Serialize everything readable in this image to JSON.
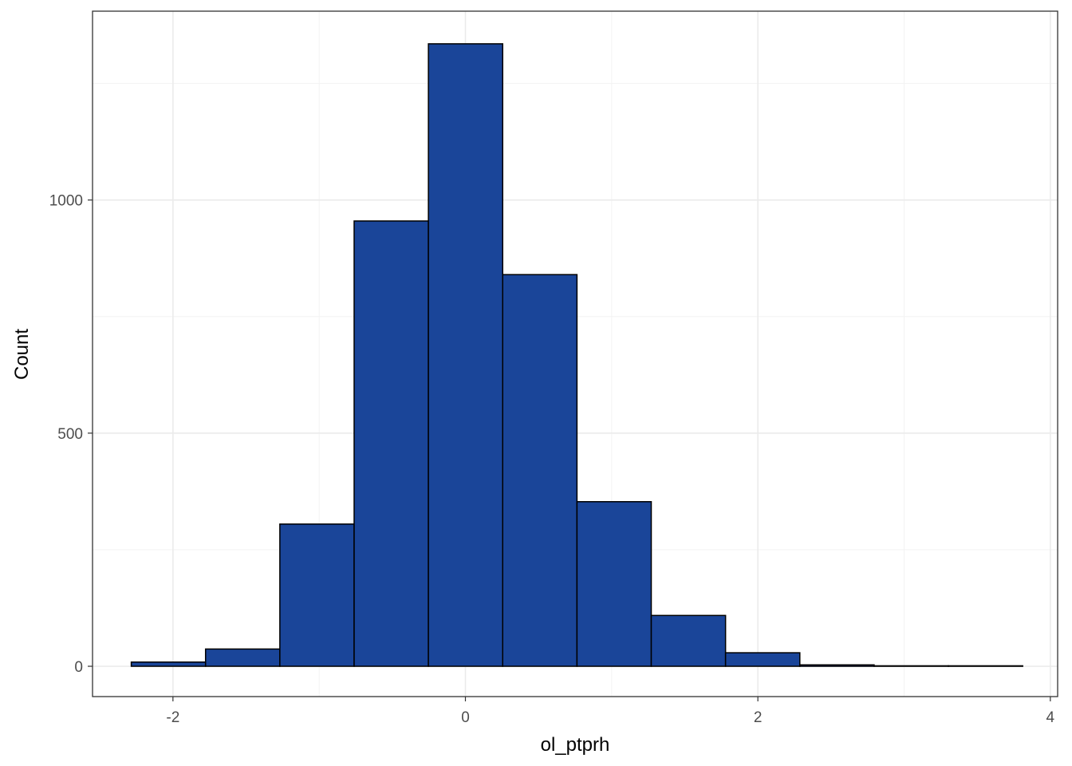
{
  "chart_data": {
    "type": "bar",
    "subtype": "histogram",
    "xlabel": "ol_ptprh",
    "ylabel": "Count",
    "xlim": [
      -2.55,
      4.05
    ],
    "ylim": [
      -65,
      1405
    ],
    "x_ticks": [
      -2,
      0,
      2,
      4
    ],
    "x_tick_labels": [
      "-2",
      "0",
      "2",
      "4"
    ],
    "x_minor": [
      -1,
      1,
      3
    ],
    "y_ticks": [
      0,
      500,
      1000
    ],
    "y_tick_labels": [
      "0",
      "500",
      "1000"
    ],
    "y_minor": [
      250,
      750,
      1250
    ],
    "bin_width": 0.508,
    "bins": [
      {
        "x0": -2.285,
        "x1": -1.777,
        "count": 9
      },
      {
        "x0": -1.777,
        "x1": -1.269,
        "count": 37
      },
      {
        "x0": -1.269,
        "x1": -0.761,
        "count": 305
      },
      {
        "x0": -0.761,
        "x1": -0.253,
        "count": 955
      },
      {
        "x0": -0.253,
        "x1": 0.255,
        "count": 1335
      },
      {
        "x0": 0.255,
        "x1": 0.763,
        "count": 840
      },
      {
        "x0": 0.763,
        "x1": 1.271,
        "count": 353
      },
      {
        "x0": 1.271,
        "x1": 1.779,
        "count": 109
      },
      {
        "x0": 1.779,
        "x1": 2.287,
        "count": 29
      },
      {
        "x0": 2.287,
        "x1": 2.795,
        "count": 3
      },
      {
        "x0": 2.795,
        "x1": 3.303,
        "count": 1
      },
      {
        "x0": 3.303,
        "x1": 3.811,
        "count": 1
      }
    ],
    "fill_color": "#1a4599",
    "edge_color": "#000000",
    "grid": true,
    "legend": "none"
  }
}
